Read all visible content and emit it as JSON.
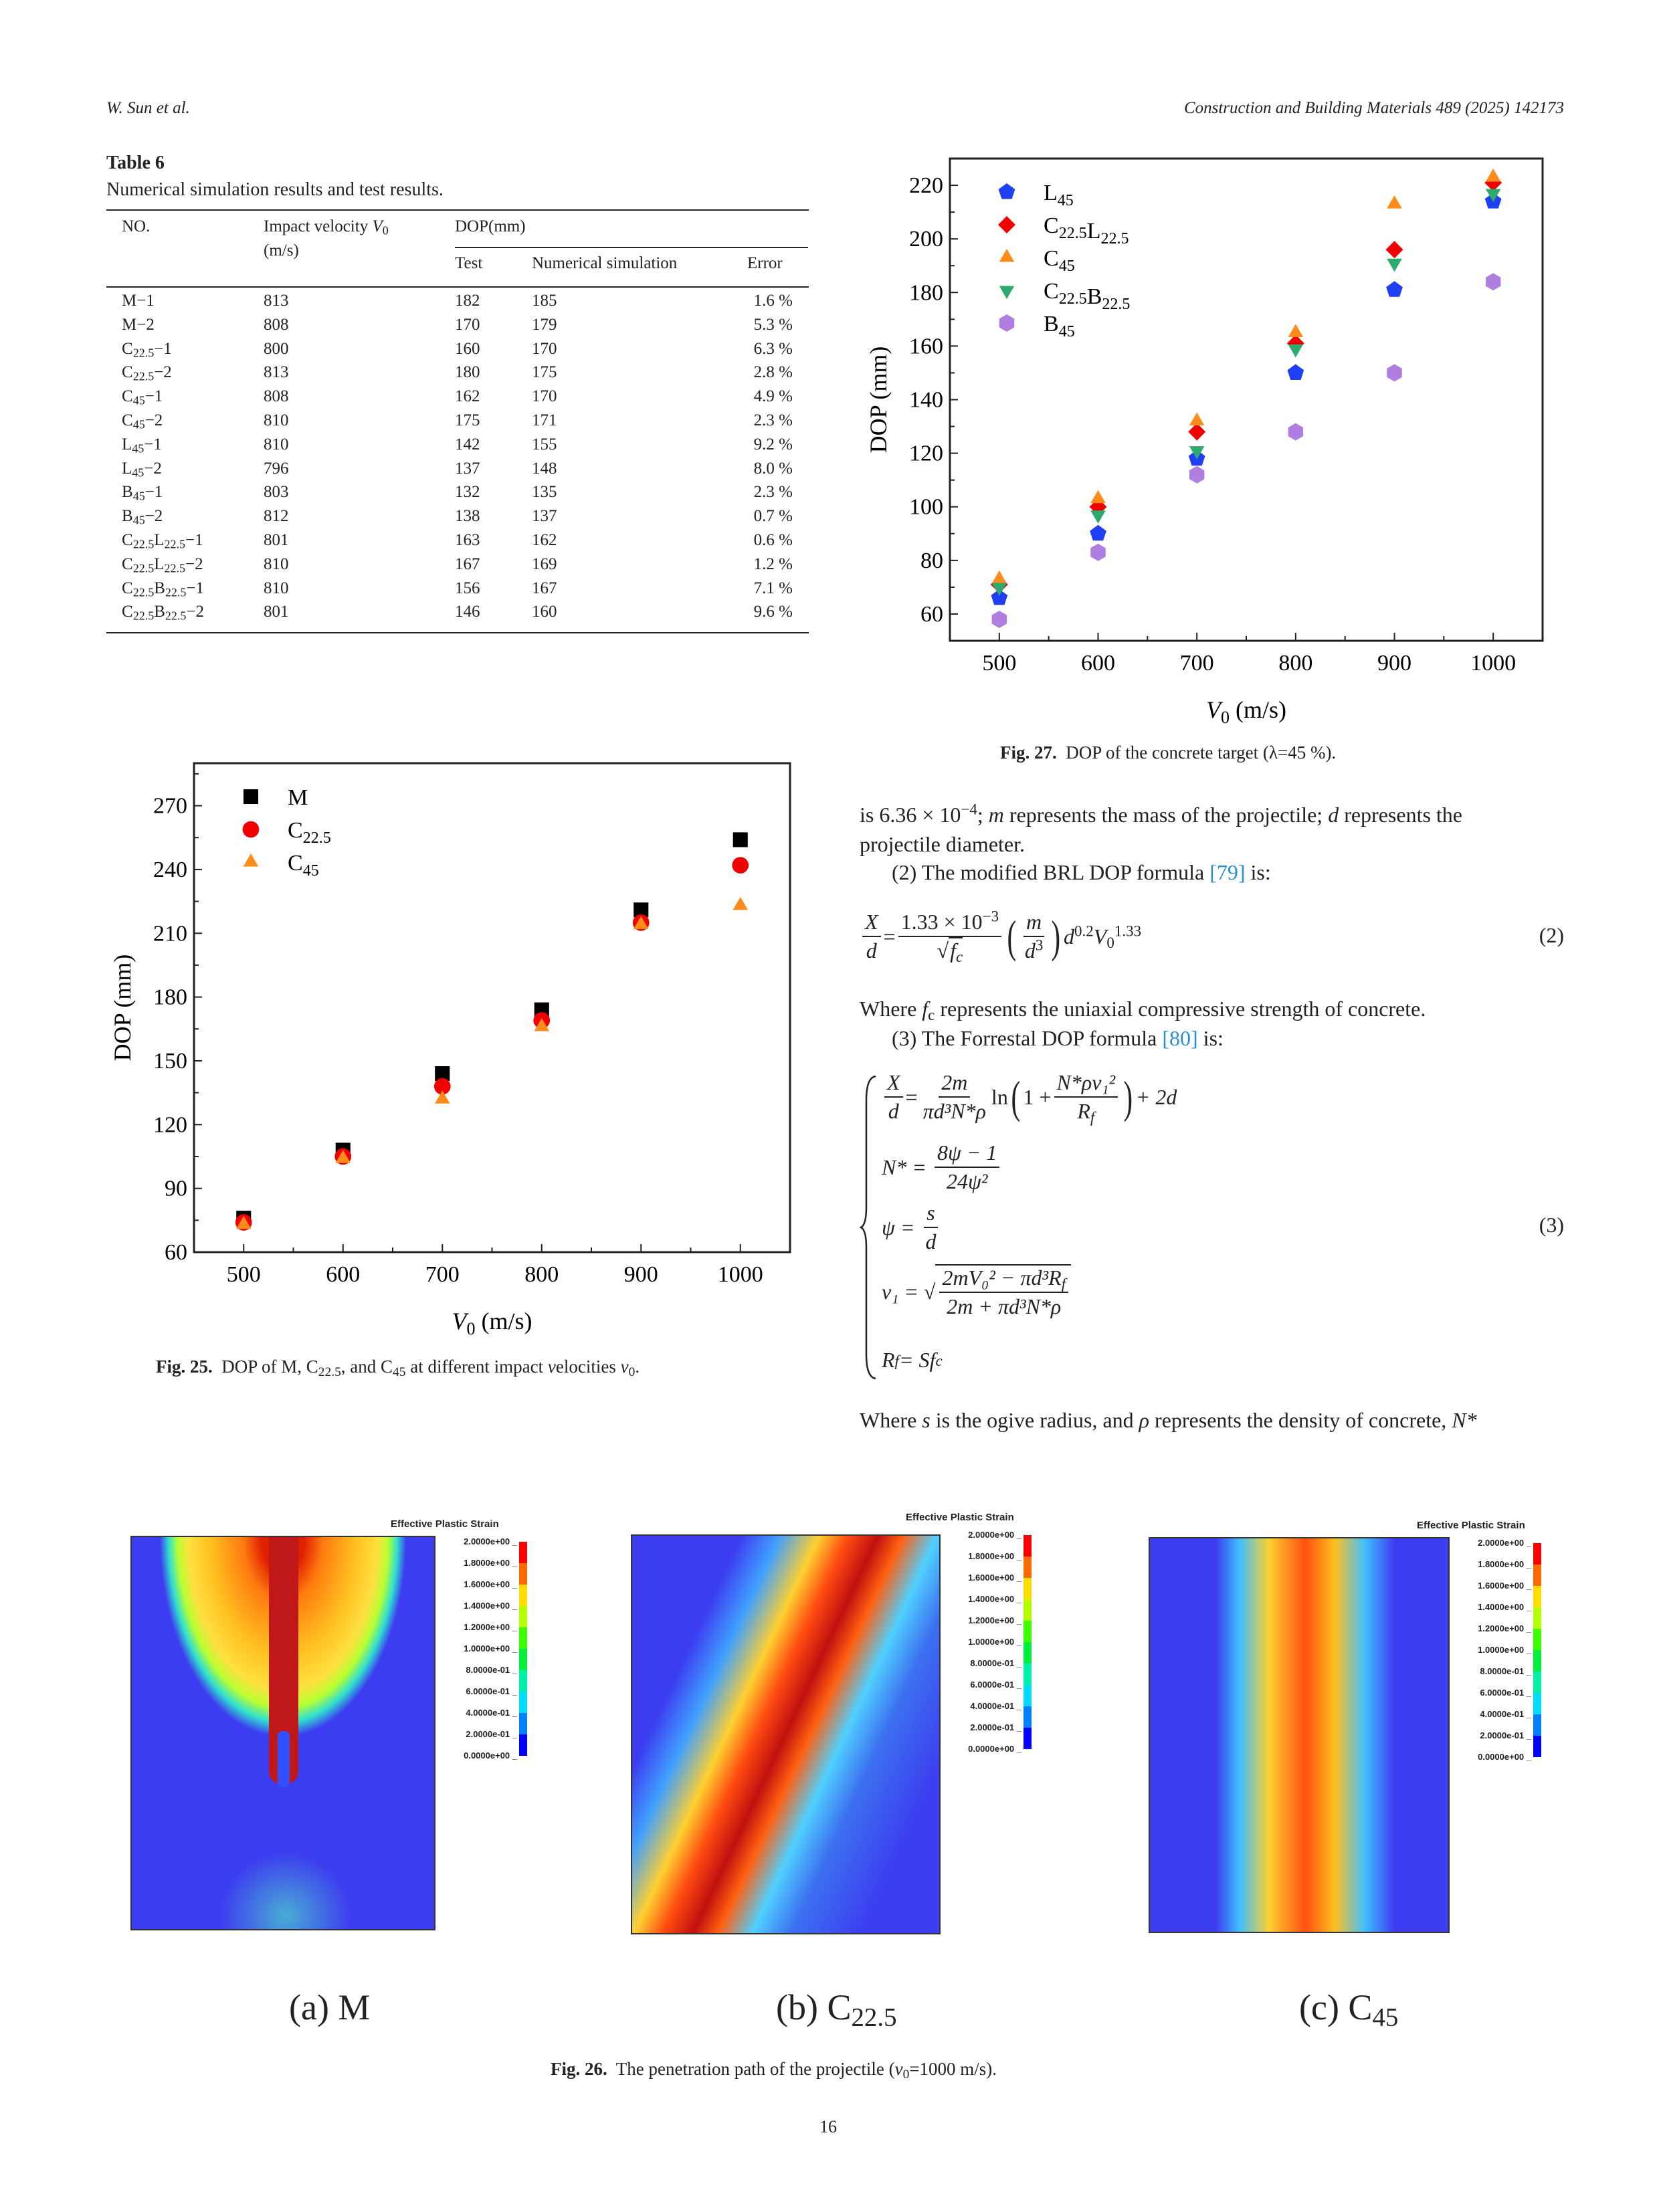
{
  "header": {
    "authors": "W. Sun et al.",
    "journal": "Construction and Building Materials 489 (2025) 142173"
  },
  "table6": {
    "title": "Table 6",
    "caption": "Numerical simulation results and test results.",
    "headers": {
      "no": "NO.",
      "velocity": "Impact velocity ",
      "velocity_var": "V",
      "velocity_sub": "0",
      "velocity_unit": "(m/s)",
      "dop": "DOP(mm)",
      "test": "Test",
      "sim": "Numerical simulation",
      "error": "Error"
    },
    "rows": [
      {
        "no": [
          {
            "t": "M"
          },
          {
            "t": "−1"
          }
        ],
        "v": "813",
        "test": "182",
        "sim": "185",
        "err": "1.6 %"
      },
      {
        "no": [
          {
            "t": "M"
          },
          {
            "t": "−2"
          }
        ],
        "v": "808",
        "test": "170",
        "sim": "179",
        "err": "5.3 %"
      },
      {
        "no": [
          {
            "t": "C",
            "sub": "22.5"
          },
          {
            "t": "−1"
          }
        ],
        "v": "800",
        "test": "160",
        "sim": "170",
        "err": "6.3 %"
      },
      {
        "no": [
          {
            "t": "C",
            "sub": "22.5"
          },
          {
            "t": "−2"
          }
        ],
        "v": "813",
        "test": "180",
        "sim": "175",
        "err": "2.8 %"
      },
      {
        "no": [
          {
            "t": "C",
            "sub": "45"
          },
          {
            "t": "−1"
          }
        ],
        "v": "808",
        "test": "162",
        "sim": "170",
        "err": "4.9 %"
      },
      {
        "no": [
          {
            "t": "C",
            "sub": "45"
          },
          {
            "t": "−2"
          }
        ],
        "v": "810",
        "test": "175",
        "sim": "171",
        "err": "2.3 %"
      },
      {
        "no": [
          {
            "t": "L",
            "sub": "45"
          },
          {
            "t": "−1"
          }
        ],
        "v": "810",
        "test": "142",
        "sim": "155",
        "err": "9.2 %"
      },
      {
        "no": [
          {
            "t": "L",
            "sub": "45"
          },
          {
            "t": "−2"
          }
        ],
        "v": "796",
        "test": "137",
        "sim": "148",
        "err": "8.0 %"
      },
      {
        "no": [
          {
            "t": "B",
            "sub": "45"
          },
          {
            "t": "−1"
          }
        ],
        "v": "803",
        "test": "132",
        "sim": "135",
        "err": "2.3 %"
      },
      {
        "no": [
          {
            "t": "B",
            "sub": "45"
          },
          {
            "t": "−2"
          }
        ],
        "v": "812",
        "test": "138",
        "sim": "137",
        "err": "0.7 %"
      },
      {
        "no": [
          {
            "t": "C",
            "sub": "22.5"
          },
          {
            "t": "L",
            "sub": "22.5"
          },
          {
            "t": "−1"
          }
        ],
        "v": "801",
        "test": "163",
        "sim": "162",
        "err": "0.6 %"
      },
      {
        "no": [
          {
            "t": "C",
            "sub": "22.5"
          },
          {
            "t": "L",
            "sub": "22.5"
          },
          {
            "t": "−2"
          }
        ],
        "v": "810",
        "test": "167",
        "sim": "169",
        "err": "1.2 %"
      },
      {
        "no": [
          {
            "t": "C",
            "sub": "22.5"
          },
          {
            "t": "B",
            "sub": "22.5"
          },
          {
            "t": "−1"
          }
        ],
        "v": "810",
        "test": "156",
        "sim": "167",
        "err": "7.1 %"
      },
      {
        "no": [
          {
            "t": "C",
            "sub": "22.5"
          },
          {
            "t": "B",
            "sub": "22.5"
          },
          {
            "t": "−2"
          }
        ],
        "v": "801",
        "test": "146",
        "sim": "160",
        "err": "9.6 %"
      }
    ]
  },
  "chart_data": [
    {
      "id": "fig27",
      "type": "scatter",
      "xlabel": "V",
      "xlabel_sub": "0",
      "xlabel_unit": " (m/s)",
      "ylabel": "DOP (mm)",
      "xlim": [
        450,
        1050
      ],
      "ylim": [
        50,
        230
      ],
      "xticks": [
        500,
        600,
        700,
        800,
        900,
        1000
      ],
      "yticks": [
        60,
        80,
        100,
        120,
        140,
        160,
        180,
        200,
        220
      ],
      "legend_position": "top-left",
      "grid": false,
      "x": [
        500,
        600,
        700,
        800,
        900,
        1000
      ],
      "series": [
        {
          "name": [
            {
              "t": "L",
              "sub": "45"
            }
          ],
          "marker": "pentagon",
          "color": "#1f3ff5",
          "values": [
            66,
            90,
            118,
            150,
            181,
            214
          ]
        },
        {
          "name": [
            {
              "t": "C",
              "sub": "22.5"
            },
            {
              "t": "L",
              "sub": "22.5"
            }
          ],
          "marker": "diamond",
          "color": "#f00000",
          "values": [
            71,
            100,
            128,
            161,
            196,
            221
          ]
        },
        {
          "name": [
            {
              "t": "C",
              "sub": "45"
            }
          ],
          "marker": "triangle-up",
          "color": "#ff8c1a",
          "values": [
            73,
            103,
            132,
            165,
            213,
            223
          ]
        },
        {
          "name": [
            {
              "t": "C",
              "sub": "22.5"
            },
            {
              "t": "B",
              "sub": "22.5"
            }
          ],
          "marker": "triangle-down",
          "color": "#2eaa6e",
          "values": [
            70,
            97,
            121,
            159,
            191,
            217
          ]
        },
        {
          "name": [
            {
              "t": "B",
              "sub": "45"
            }
          ],
          "marker": "hexagon",
          "color": "#b07ee0",
          "values": [
            58,
            83,
            112,
            128,
            150,
            184
          ]
        }
      ]
    },
    {
      "id": "fig25",
      "type": "scatter",
      "xlabel": "V",
      "xlabel_sub": "0",
      "xlabel_unit": " (m/s)",
      "ylabel": "DOP (mm)",
      "xlim": [
        450,
        1050
      ],
      "ylim": [
        60,
        290
      ],
      "xticks": [
        500,
        600,
        700,
        800,
        900,
        1000
      ],
      "yticks": [
        60,
        90,
        120,
        150,
        180,
        210,
        240,
        270
      ],
      "legend_position": "top-left",
      "grid": false,
      "x": [
        500,
        600,
        700,
        800,
        900,
        1000
      ],
      "series": [
        {
          "name": [
            {
              "t": "M"
            }
          ],
          "marker": "square",
          "color": "#000000",
          "values": [
            76,
            108,
            144,
            174,
            221,
            254
          ]
        },
        {
          "name": [
            {
              "t": "C",
              "sub": "22.5"
            }
          ],
          "marker": "circle",
          "color": "#f00000",
          "values": [
            74,
            105,
            138,
            169,
            215,
            242
          ]
        },
        {
          "name": [
            {
              "t": "C",
              "sub": "45"
            }
          ],
          "marker": "triangle-up",
          "color": "#ff8c1a",
          "values": [
            73,
            104,
            132,
            166,
            214,
            223
          ]
        }
      ]
    }
  ],
  "fig27_caption": {
    "label": "Fig. 27.",
    "text": "DOP of the concrete target (λ=45 %)."
  },
  "fig25_caption": {
    "label": "Fig. 25.",
    "t1": "DOP of M, C",
    "s1": "22.5",
    "t2": ", and C",
    "s2": "45",
    "t3": " at different impact ",
    "v": "v",
    "t4": "elocities ",
    "v0": "v",
    "v0sub": "0",
    "t5": "."
  },
  "text": {
    "p1a": "is 6.36 × 10",
    "p1sup": "−4",
    "p1b": "; ",
    "p1m": "m",
    "p1c": " represents the mass of the projectile; ",
    "p1d": "d",
    "p1e": " represents the",
    "p2": "projectile diameter.",
    "p3a": "(2) The modified BRL DOP formula ",
    "p3ref": "[79]",
    "p3b": " is:",
    "p4a": "Where ",
    "p4f": "f",
    "p4fsub": "c",
    "p4b": " represents the uniaxial compressive strength of concrete.",
    "p5a": "(3) The Forrestal DOP formula ",
    "p5ref": "[80]",
    "p5b": " is:",
    "p6a": "Where ",
    "p6s": "s",
    "p6b": " is the ogive radius, and ",
    "p6rho": "ρ",
    "p6c": " represents the density of concrete, ",
    "p6n": "N*"
  },
  "eq2": {
    "X": "X",
    "d": "d",
    "eq": "=",
    "num": "1.33 × 10",
    "numsup": "−3",
    "den_f": "f",
    "den_c": "c",
    "m": "m",
    "d3": "d",
    "three": "3",
    "dd": "d",
    "dexp": "0.2",
    "V": "V",
    "Vsub": "0",
    "Vexp": "1.33",
    "number": "(2)"
  },
  "eq3": {
    "r1": {
      "X": "X",
      "d": "d",
      "num": "2m",
      "den": "πd³N*ρ",
      "ln": "ln",
      "one": "1 + ",
      "inum": "N*ρv₁²",
      "iden": "R",
      "iden_sub": "f",
      "tail": "+ 2d"
    },
    "r2": {
      "lhs": "N* =",
      "num": "8ψ − 1",
      "den": "24ψ²"
    },
    "r3": {
      "lhs": "ψ =",
      "num": "s",
      "den": "d"
    },
    "r4": {
      "lhs": "v₁ =",
      "num": "2mV₀² − πd³R",
      "num_sub": "f",
      "den": "2m + πd³N*ρ"
    },
    "r5": {
      "lhs": "R",
      "lhs_sub": "f",
      "rhs": " = Sf",
      "rhs_sub": "c"
    },
    "number": "(3)"
  },
  "fig26": {
    "legend_title": "Effective Plastic Strain",
    "legend_labels": [
      "2.0000e+00",
      "1.8000e+00",
      "1.6000e+00",
      "1.4000e+00",
      "1.2000e+00",
      "1.0000e+00",
      "8.0000e-01",
      "6.0000e-01",
      "4.0000e-01",
      "2.0000e-01",
      "0.0000e+00"
    ],
    "legend_colors": [
      "#ff0000",
      "#ff6a00",
      "#ffdd00",
      "#b4ff00",
      "#3cff00",
      "#00f03c",
      "#00f0a8",
      "#00dcff",
      "#0080ff",
      "#0000ff"
    ],
    "panels": [
      {
        "label": "(a) M",
        "a": "(a) M",
        "sub": ""
      },
      {
        "a": "(b) C",
        "sub": "22.5"
      },
      {
        "a": "(c) C",
        "sub": "45"
      }
    ],
    "caption_label": "Fig. 26.",
    "caption_a": "The penetration path of the projectile (",
    "caption_v": "v",
    "caption_sub": "0",
    "caption_b": "=1000 m/s)."
  },
  "page_number": "16"
}
